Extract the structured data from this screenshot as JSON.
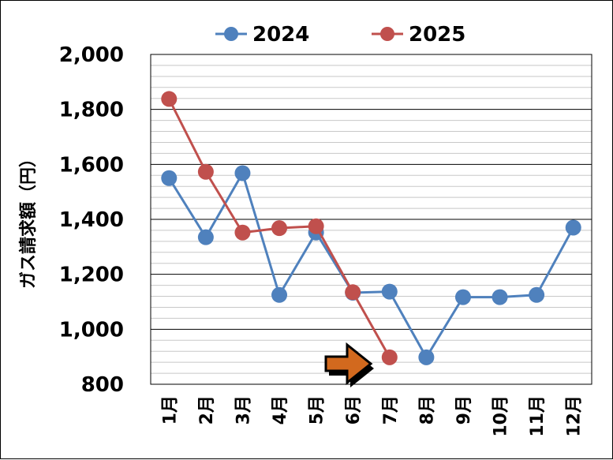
{
  "chart_data": {
    "type": "line",
    "categories": [
      "1月",
      "2月",
      "3月",
      "4月",
      "5月",
      "6月",
      "7月",
      "8月",
      "9月",
      "10月",
      "11月",
      "12月"
    ],
    "series": [
      {
        "name": "2024",
        "color": "#4f81bd",
        "values": [
          1550,
          1335,
          1568,
          1125,
          1352,
          1133,
          1137,
          898,
          1117,
          1117,
          1125,
          1370
        ]
      },
      {
        "name": "2025",
        "color": "#c0504d",
        "values": [
          1838,
          1573,
          1352,
          1368,
          1375,
          1135,
          898,
          null,
          null,
          null,
          null,
          null
        ]
      }
    ],
    "ylabel": "ガス請求額（円）",
    "ylim": [
      800,
      2000
    ],
    "yticks": [
      "800",
      "1,000",
      "1,200",
      "1,400",
      "1,600",
      "1,800",
      "2,000"
    ],
    "grid": "horizontal",
    "legend_position": "top",
    "annotation": {
      "type": "arrow",
      "color": "#d2691e",
      "points_to": "7月"
    }
  }
}
